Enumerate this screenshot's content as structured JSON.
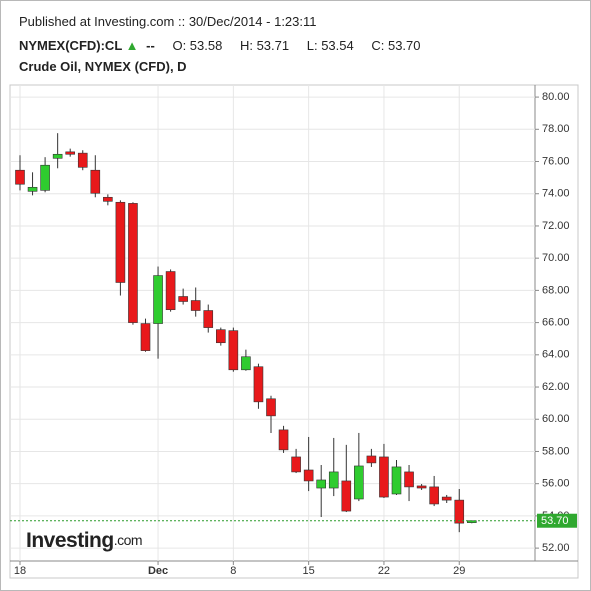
{
  "header": {
    "published": "Published at Investing.com :: 30/Dec/2014 - 1:23:11",
    "symbol": "NYMEX(CFD):CL",
    "direction": "▲",
    "change": "--",
    "open": "O: 53.58",
    "high": "H: 53.71",
    "low": "L: 53.54",
    "close": "C: 53.70"
  },
  "chart_data": {
    "type": "candlestick",
    "title": "Crude Oil, NYMEX (CFD), D",
    "categories": [
      "18",
      null,
      null,
      null,
      null,
      null,
      null,
      null,
      null,
      null,
      null,
      "Dec",
      null,
      null,
      null,
      null,
      null,
      "8",
      null,
      null,
      null,
      null,
      null,
      "15",
      null,
      null,
      null,
      null,
      null,
      "22",
      null,
      null,
      null,
      null,
      null,
      "29",
      null
    ],
    "series": [
      {
        "name": "open",
        "values": [
          75.46,
          74.15,
          74.21,
          76.2,
          76.6,
          76.52,
          75.46,
          73.78,
          73.47,
          73.4,
          65.94,
          65.94,
          69.17,
          67.62,
          67.37,
          66.75,
          65.56,
          65.5,
          63.07,
          63.26,
          61.27,
          59.34,
          57.66,
          56.85,
          55.73,
          55.73,
          56.17,
          55.05,
          57.72,
          57.66,
          55.36,
          56.73,
          55.86,
          55.8,
          55.17,
          54.98,
          53.58
        ]
      },
      {
        "name": "high",
        "values": [
          76.39,
          75.33,
          76.27,
          77.76,
          76.8,
          76.7,
          76.39,
          73.96,
          73.59,
          73.47,
          66.25,
          69.48,
          69.3,
          68.11,
          68.18,
          67.12,
          65.69,
          65.69,
          64.32,
          63.45,
          61.46,
          59.59,
          58.16,
          58.9,
          57.16,
          58.84,
          58.41,
          59.15,
          58.16,
          58.47,
          57.47,
          57.16,
          55.98,
          56.48,
          55.3,
          55.67,
          53.71
        ]
      },
      {
        "name": "low",
        "values": [
          74.21,
          73.9,
          74.09,
          75.58,
          76.3,
          75.46,
          73.78,
          73.28,
          67.68,
          65.87,
          64.19,
          63.76,
          66.68,
          67.12,
          66.37,
          65.38,
          64.57,
          62.95,
          63.01,
          60.65,
          59.15,
          57.91,
          56.66,
          55.54,
          53.93,
          55.23,
          54.24,
          54.92,
          57.04,
          55.11,
          55.3,
          54.92,
          55.61,
          54.61,
          54.8,
          52.99,
          53.54
        ]
      },
      {
        "name": "close",
        "values": [
          74.59,
          74.4,
          75.77,
          76.45,
          76.45,
          75.64,
          74.03,
          73.53,
          68.49,
          66.0,
          64.26,
          68.92,
          66.8,
          67.31,
          66.75,
          65.69,
          64.75,
          63.07,
          63.88,
          61.08,
          60.21,
          58.1,
          56.73,
          56.17,
          56.23,
          56.73,
          54.3,
          57.1,
          57.29,
          55.17,
          57.04,
          55.8,
          55.73,
          54.74,
          54.98,
          53.55,
          53.7
        ]
      }
    ],
    "up_color": "#2fcc2f",
    "down_color": "#e8191b",
    "ylim": [
      51.2,
      80.75
    ],
    "yticks": [
      {
        "value": 52,
        "label": "52.00"
      },
      {
        "value": 54,
        "label": "54.00"
      },
      {
        "value": 56,
        "label": "56.00"
      },
      {
        "value": 58,
        "label": "58.00"
      },
      {
        "value": 60,
        "label": "60.00"
      },
      {
        "value": 62,
        "label": "62.00"
      },
      {
        "value": 64,
        "label": "64.00"
      },
      {
        "value": 66,
        "label": "66.00"
      },
      {
        "value": 68,
        "label": "68.00"
      },
      {
        "value": 70,
        "label": "70.00"
      },
      {
        "value": 72,
        "label": "72.00"
      },
      {
        "value": 74,
        "label": "74.00"
      },
      {
        "value": 76,
        "label": "76.00"
      },
      {
        "value": 78,
        "label": "78.00"
      },
      {
        "value": 80,
        "label": "80.00"
      }
    ],
    "last_price": {
      "value": 53.7,
      "label": "53.70"
    },
    "grid": true,
    "watermark": {
      "brand": "Investing",
      "suffix": ".com"
    }
  }
}
